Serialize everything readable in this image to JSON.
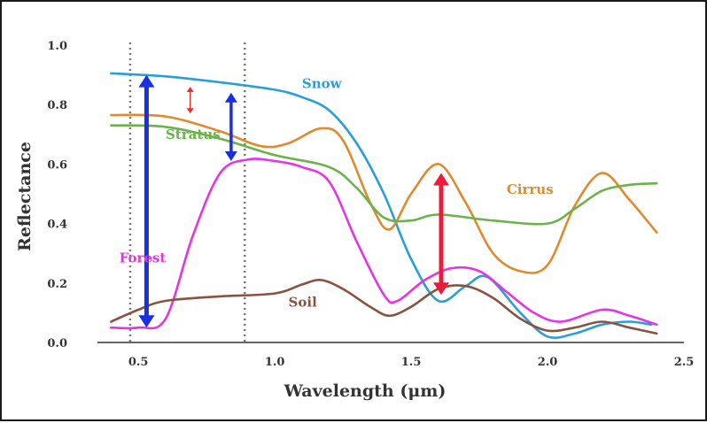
{
  "chart_data": {
    "type": "line",
    "xlabel": "Wavelength (μm)",
    "ylabel": "Reflectance",
    "xlim": [
      0.35,
      2.5
    ],
    "ylim": [
      0.0,
      1.0
    ],
    "xticks": [
      "0.5",
      "1.0",
      "1.5",
      "2.0",
      "2.5"
    ],
    "xtick_values": [
      0.5,
      1.0,
      1.5,
      2.0,
      2.5
    ],
    "yticks": [
      "0.0",
      "0.2",
      "0.4",
      "0.6",
      "0.8",
      "1.0"
    ],
    "ytick_values": [
      0.0,
      0.2,
      0.4,
      0.6,
      0.8,
      1.0
    ],
    "grid": false,
    "reference_lines_x": [
      0.47,
      0.89
    ],
    "series": [
      {
        "name": "Snow",
        "color": "#2a9fd6",
        "label_at": [
          1.1,
          0.855
        ],
        "points": [
          [
            0.4,
            0.905
          ],
          [
            0.6,
            0.895
          ],
          [
            0.8,
            0.875
          ],
          [
            1.0,
            0.85
          ],
          [
            1.1,
            0.825
          ],
          [
            1.2,
            0.78
          ],
          [
            1.3,
            0.67
          ],
          [
            1.4,
            0.5
          ],
          [
            1.5,
            0.28
          ],
          [
            1.6,
            0.14
          ],
          [
            1.7,
            0.19
          ],
          [
            1.78,
            0.22
          ],
          [
            1.9,
            0.1
          ],
          [
            2.0,
            0.02
          ],
          [
            2.1,
            0.03
          ],
          [
            2.2,
            0.06
          ],
          [
            2.3,
            0.07
          ],
          [
            2.38,
            0.06
          ]
        ]
      },
      {
        "name": "Cirrus",
        "color": "#e08a2c",
        "label_at": [
          1.85,
          0.5
        ],
        "points": [
          [
            0.4,
            0.765
          ],
          [
            0.6,
            0.76
          ],
          [
            0.8,
            0.71
          ],
          [
            0.95,
            0.66
          ],
          [
            1.05,
            0.67
          ],
          [
            1.17,
            0.72
          ],
          [
            1.25,
            0.68
          ],
          [
            1.35,
            0.47
          ],
          [
            1.42,
            0.38
          ],
          [
            1.5,
            0.5
          ],
          [
            1.6,
            0.6
          ],
          [
            1.7,
            0.47
          ],
          [
            1.8,
            0.3
          ],
          [
            1.9,
            0.24
          ],
          [
            2.0,
            0.26
          ],
          [
            2.1,
            0.46
          ],
          [
            2.2,
            0.57
          ],
          [
            2.3,
            0.48
          ],
          [
            2.4,
            0.37
          ]
        ]
      },
      {
        "name": "Stratus",
        "color": "#6ab34a",
        "label_at": [
          0.6,
          0.685
        ],
        "points": [
          [
            0.4,
            0.73
          ],
          [
            0.6,
            0.725
          ],
          [
            0.8,
            0.685
          ],
          [
            1.0,
            0.63
          ],
          [
            1.2,
            0.59
          ],
          [
            1.3,
            0.52
          ],
          [
            1.4,
            0.42
          ],
          [
            1.5,
            0.41
          ],
          [
            1.6,
            0.43
          ],
          [
            1.8,
            0.41
          ],
          [
            2.0,
            0.4
          ],
          [
            2.1,
            0.45
          ],
          [
            2.2,
            0.51
          ],
          [
            2.3,
            0.53
          ],
          [
            2.4,
            0.535
          ]
        ]
      },
      {
        "name": "Forest",
        "color": "#e633e6",
        "label_at": [
          0.43,
          0.27
        ],
        "points": [
          [
            0.4,
            0.05
          ],
          [
            0.5,
            0.05
          ],
          [
            0.6,
            0.08
          ],
          [
            0.7,
            0.36
          ],
          [
            0.8,
            0.57
          ],
          [
            0.9,
            0.615
          ],
          [
            1.0,
            0.61
          ],
          [
            1.1,
            0.59
          ],
          [
            1.2,
            0.54
          ],
          [
            1.3,
            0.34
          ],
          [
            1.4,
            0.16
          ],
          [
            1.45,
            0.14
          ],
          [
            1.55,
            0.21
          ],
          [
            1.65,
            0.25
          ],
          [
            1.75,
            0.24
          ],
          [
            1.85,
            0.17
          ],
          [
            1.95,
            0.1
          ],
          [
            2.05,
            0.07
          ],
          [
            2.2,
            0.11
          ],
          [
            2.3,
            0.09
          ],
          [
            2.4,
            0.06
          ]
        ]
      },
      {
        "name": "Soil",
        "color": "#8a5240",
        "label_at": [
          1.05,
          0.12
        ],
        "points": [
          [
            0.4,
            0.07
          ],
          [
            0.5,
            0.11
          ],
          [
            0.6,
            0.14
          ],
          [
            0.8,
            0.155
          ],
          [
            1.0,
            0.165
          ],
          [
            1.1,
            0.195
          ],
          [
            1.17,
            0.21
          ],
          [
            1.25,
            0.18
          ],
          [
            1.35,
            0.12
          ],
          [
            1.42,
            0.09
          ],
          [
            1.5,
            0.12
          ],
          [
            1.6,
            0.18
          ],
          [
            1.7,
            0.19
          ],
          [
            1.8,
            0.15
          ],
          [
            1.9,
            0.08
          ],
          [
            2.0,
            0.04
          ],
          [
            2.1,
            0.05
          ],
          [
            2.2,
            0.07
          ],
          [
            2.3,
            0.05
          ],
          [
            2.4,
            0.03
          ]
        ]
      }
    ],
    "annotations": [
      {
        "type": "double-arrow",
        "color": "#1a2ee6",
        "x": 0.53,
        "y1": 0.9,
        "y2": 0.05,
        "width": "thick"
      },
      {
        "type": "double-arrow",
        "color": "#e63232",
        "x": 0.69,
        "y1": 0.86,
        "y2": 0.77,
        "width": "thin"
      },
      {
        "type": "double-arrow",
        "color": "#1a2ee6",
        "x": 0.84,
        "y1": 0.84,
        "y2": 0.61,
        "width": "medium"
      },
      {
        "type": "double-arrow",
        "color": "#ee1a3a",
        "x": 1.61,
        "y1": 0.57,
        "y2": 0.16,
        "width": "thick"
      }
    ]
  }
}
